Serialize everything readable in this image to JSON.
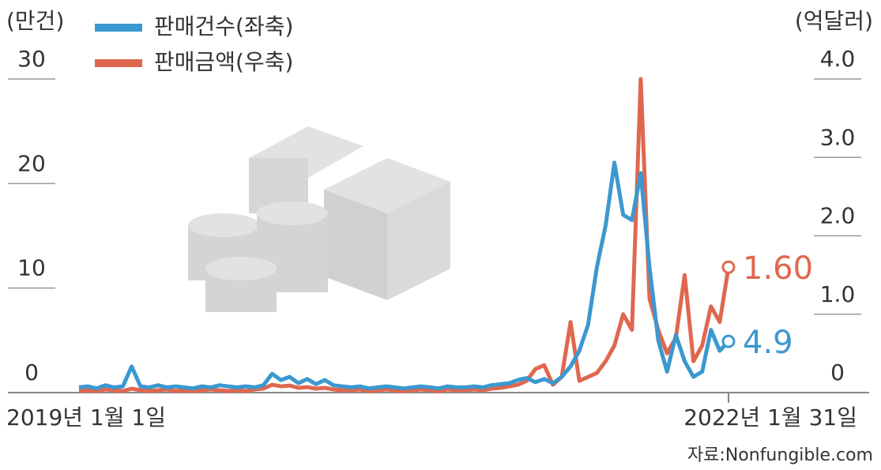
{
  "chart_data": {
    "type": "line",
    "y_label": "(만건)",
    "y2_label": "(억달러)",
    "source": "자료:Nonfungible.com",
    "categories": [
      "2019년 1월 1일",
      null,
      null,
      null,
      null,
      null,
      null,
      null,
      null,
      null,
      null,
      null,
      null,
      null,
      null,
      null,
      null,
      null,
      null,
      null,
      null,
      null,
      null,
      null,
      null,
      null,
      null,
      null,
      null,
      null,
      null,
      null,
      null,
      null,
      null,
      null,
      null,
      null,
      null,
      null,
      null,
      null,
      null,
      null,
      null,
      null,
      null,
      null,
      null,
      null,
      null,
      null,
      null,
      null,
      null,
      null,
      null,
      null,
      null,
      null,
      null,
      null,
      null,
      null,
      null,
      null,
      null,
      null,
      null,
      null,
      null,
      null,
      null,
      null,
      "2022년 1월 31일"
    ],
    "series": [
      {
        "name": "판매금액(우축)",
        "color": "#e0674f",
        "axis": "y2",
        "values": [
          0.02,
          0.03,
          0.02,
          0.04,
          0.03,
          0.02,
          0.05,
          0.03,
          0.02,
          0.03,
          0.04,
          0.02,
          0.03,
          0.02,
          0.03,
          0.04,
          0.03,
          0.02,
          0.03,
          0.02,
          0.04,
          0.05,
          0.1,
          0.08,
          0.09,
          0.06,
          0.07,
          0.05,
          0.06,
          0.04,
          0.03,
          0.03,
          0.04,
          0.02,
          0.03,
          0.04,
          0.03,
          0.02,
          0.03,
          0.04,
          0.03,
          0.02,
          0.04,
          0.03,
          0.03,
          0.04,
          0.03,
          0.05,
          0.06,
          0.08,
          0.1,
          0.15,
          0.3,
          0.35,
          0.1,
          0.2,
          0.9,
          0.15,
          0.2,
          0.25,
          0.4,
          0.6,
          1.0,
          0.8,
          4.0,
          1.2,
          0.8,
          0.5,
          0.7,
          1.5,
          0.4,
          0.6,
          1.1,
          0.9,
          1.6
        ],
        "value_labels": [
          null,
          null,
          null,
          null,
          null,
          null,
          null,
          null,
          null,
          null,
          null,
          null,
          null,
          null,
          null,
          null,
          null,
          null,
          null,
          null,
          null,
          null,
          null,
          null,
          null,
          null,
          null,
          null,
          null,
          null,
          null,
          null,
          null,
          null,
          null,
          null,
          null,
          null,
          null,
          null,
          null,
          null,
          null,
          null,
          null,
          null,
          null,
          null,
          null,
          null,
          null,
          null,
          null,
          null,
          null,
          null,
          null,
          null,
          null,
          null,
          null,
          null,
          null,
          null,
          null,
          null,
          null,
          null,
          null,
          null,
          null,
          null,
          null,
          null,
          "1.60"
        ]
      },
      {
        "name": "판매건수(좌축)",
        "color": "#3b98d0",
        "values": [
          0.5,
          0.6,
          0.4,
          0.7,
          0.5,
          0.6,
          2.5,
          0.6,
          0.5,
          0.7,
          0.5,
          0.6,
          0.5,
          0.4,
          0.6,
          0.5,
          0.7,
          0.6,
          0.5,
          0.6,
          0.5,
          0.7,
          1.8,
          1.2,
          1.5,
          0.9,
          1.3,
          0.8,
          1.2,
          0.7,
          0.6,
          0.5,
          0.6,
          0.4,
          0.5,
          0.6,
          0.5,
          0.4,
          0.5,
          0.6,
          0.5,
          0.4,
          0.6,
          0.5,
          0.5,
          0.6,
          0.5,
          0.7,
          0.8,
          0.9,
          1.2,
          1.4,
          1.0,
          1.3,
          0.9,
          1.5,
          2.5,
          4.0,
          6.5,
          12.0,
          16.0,
          22.0,
          17.0,
          16.5,
          21.0,
          12.0,
          5.0,
          2.0,
          5.5,
          3.0,
          1.5,
          2.0,
          6.0,
          4.0,
          4.9
        ]
      }
    ],
    "ylim": [
      0,
      30
    ],
    "yticks": [
      0,
      10,
      20,
      30
    ],
    "y2lim": [
      0,
      4
    ],
    "y2ticks": [
      0,
      {
        "value": 1,
        "label": "1.0"
      },
      {
        "value": 2,
        "label": "2.0"
      },
      {
        "value": 3,
        "label": "3.0"
      },
      {
        "value": 4,
        "label": "4.0"
      }
    ]
  }
}
